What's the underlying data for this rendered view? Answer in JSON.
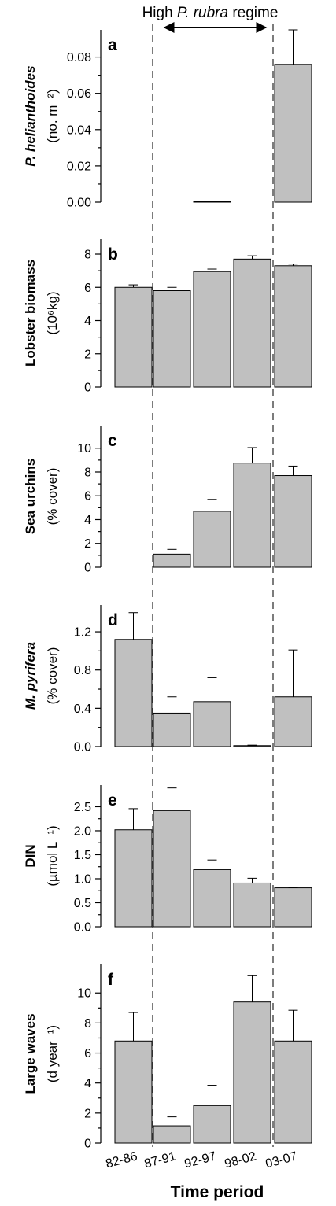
{
  "header": {
    "text_prefix": "High ",
    "text_species": "P. rubra",
    "text_suffix": " regime"
  },
  "chart_data": {
    "type": "bar",
    "xlabel": "Time period",
    "categories": [
      "82-86",
      "87-91",
      "92-97",
      "98-02",
      "03-07"
    ],
    "regime_boundaries": [
      "82-86|87-91",
      "98-02|03-07"
    ],
    "panels": [
      {
        "letter": "a",
        "ylabel_main": "P. helianthoides",
        "ylabel_main_italic": true,
        "ylabel_unit": "(no. m⁻²)",
        "ylim": [
          0,
          0.095
        ],
        "ticks": [
          0.0,
          0.02,
          0.04,
          0.06,
          0.08
        ],
        "tick_labels": [
          "0.00",
          "0.02",
          "0.04",
          "0.06",
          "0.08"
        ],
        "values": [
          0,
          0,
          0.0003,
          0,
          0.076
        ],
        "errors": [
          0,
          0,
          0,
          0,
          0.019
        ]
      },
      {
        "letter": "b",
        "ylabel_main": "Lobster biomass",
        "ylabel_main_italic": false,
        "ylabel_unit": "(10⁶kg)",
        "ylim": [
          0,
          8.9
        ],
        "ticks": [
          0,
          2,
          4,
          6,
          8
        ],
        "tick_labels": [
          "0",
          "2",
          "4",
          "6",
          "8"
        ],
        "values": [
          6.0,
          5.8,
          6.95,
          7.7,
          7.3
        ],
        "errors": [
          0.15,
          0.2,
          0.15,
          0.2,
          0.1
        ]
      },
      {
        "letter": "c",
        "ylabel_main": "Sea urchins",
        "ylabel_main_italic": false,
        "ylabel_unit": "(% cover)",
        "ylim": [
          0,
          11.9
        ],
        "ticks": [
          0,
          2,
          4,
          6,
          8,
          10
        ],
        "tick_labels": [
          "0",
          "2",
          "4",
          "6",
          "8",
          "10"
        ],
        "values": [
          0,
          1.1,
          4.7,
          8.75,
          7.7
        ],
        "errors": [
          0,
          0.4,
          1.0,
          1.3,
          0.8
        ]
      },
      {
        "letter": "d",
        "ylabel_main": "M. pyrifera",
        "ylabel_main_italic": true,
        "ylabel_unit": "(% cover)",
        "ylim": [
          0,
          1.48
        ],
        "ticks": [
          0.0,
          0.4,
          0.8,
          1.2
        ],
        "tick_labels": [
          "0.0",
          "0.4",
          "0.8",
          "1.2"
        ],
        "values": [
          1.12,
          0.35,
          0.47,
          0.01,
          0.52
        ],
        "errors": [
          0.28,
          0.17,
          0.25,
          0.005,
          0.49
        ]
      },
      {
        "letter": "e",
        "ylabel_main": "DIN",
        "ylabel_main_italic": false,
        "ylabel_unit": "(µmol L⁻¹)",
        "ylim": [
          0,
          2.95
        ],
        "ticks": [
          0.0,
          0.5,
          1.0,
          1.5,
          2.0,
          2.5
        ],
        "tick_labels": [
          "0.0",
          "0.5",
          "1.0",
          "1.5",
          "2.0",
          "2.5"
        ],
        "values": [
          2.02,
          2.42,
          1.19,
          0.91,
          0.81
        ],
        "errors": [
          0.44,
          0.47,
          0.2,
          0.1,
          0.01
        ]
      },
      {
        "letter": "f",
        "ylabel_main": "Large waves",
        "ylabel_main_italic": false,
        "ylabel_unit": "(d year⁻¹)",
        "ylim": [
          0,
          11.9
        ],
        "ticks": [
          0,
          2,
          4,
          6,
          8,
          10
        ],
        "tick_labels": [
          "0",
          "2",
          "4",
          "6",
          "8",
          "10"
        ],
        "values": [
          6.8,
          1.15,
          2.5,
          9.4,
          6.8
        ],
        "errors": [
          1.9,
          0.6,
          1.35,
          1.75,
          2.05
        ]
      }
    ]
  }
}
